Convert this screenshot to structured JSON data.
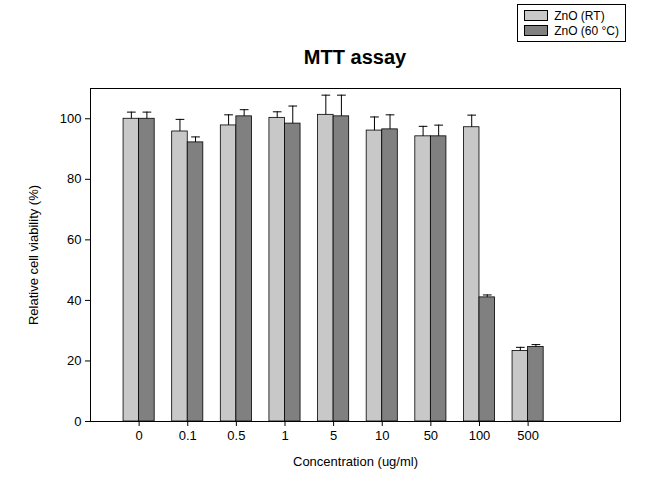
{
  "chart_data": {
    "type": "bar",
    "title": "MTT assay",
    "x_label": "Concentration (ug/ml)",
    "y_label": "Relative cell viability (%)",
    "categories": [
      "0",
      "0.1",
      "0.5",
      "1",
      "5",
      "10",
      "50",
      "100",
      "500"
    ],
    "series": [
      {
        "name": "ZnO (RT)",
        "color": "#c8c8c8",
        "values": [
          100,
          95.8,
          97.8,
          100.3,
          101.3,
          96.1,
          94.2,
          97.2,
          23.3
        ],
        "error": [
          2.2,
          4,
          3.5,
          2,
          6.5,
          4.5,
          3.3,
          4,
          1.2
        ]
      },
      {
        "name": "ZnO (60 °C)",
        "color": "#808080",
        "values": [
          100,
          92.2,
          100.8,
          98.4,
          100.8,
          96.5,
          94.2,
          41,
          24.6
        ],
        "error": [
          2.2,
          1.8,
          2.2,
          5.8,
          7,
          4.8,
          3.7,
          0.8,
          0.8
        ]
      }
    ],
    "ylim": [
      0,
      110
    ],
    "yticks": [
      0,
      20,
      40,
      60,
      80,
      100
    ],
    "grid": false,
    "legend": "top-right"
  }
}
